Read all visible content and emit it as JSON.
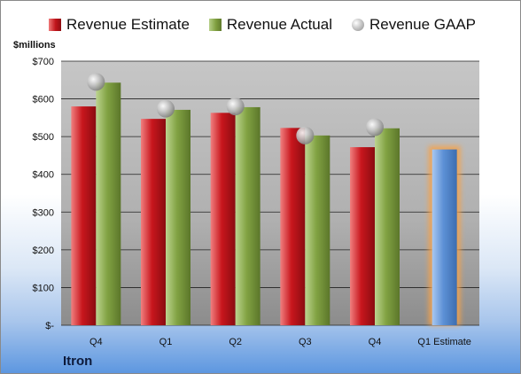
{
  "legend": {
    "estimate_label": "Revenue Estimate",
    "actual_label": "Revenue Actual",
    "gaap_label": "Revenue GAAP"
  },
  "unit_label": "$millions",
  "brand": "Itron",
  "colors": {
    "estimate": "#c0141b",
    "actual": "#7f9f3f",
    "gaap": "#a6a6a6",
    "forecast": "#5b8fd0",
    "forecast_glow": "#f6a24a",
    "plot_top": "#c3c3c3",
    "plot_bottom": "#8a8a8a"
  },
  "chart_data": {
    "type": "bar",
    "categories": [
      "Q4",
      "Q1",
      "Q2",
      "Q3",
      "Q4",
      "Q1 Estimate"
    ],
    "series": [
      {
        "name": "Revenue Estimate",
        "values": [
          580,
          547,
          563,
          523,
          472,
          466
        ]
      },
      {
        "name": "Revenue Actual",
        "values": [
          643,
          571,
          578,
          503,
          522,
          null
        ]
      },
      {
        "name": "Revenue GAAP",
        "values": [
          645,
          574,
          580,
          503,
          525,
          null
        ]
      }
    ],
    "y_ticks": [
      "$-",
      "$100",
      "$200",
      "$300",
      "$400",
      "$500",
      "$600",
      "$700"
    ],
    "ylim": [
      0,
      700
    ],
    "grid": true,
    "legend_position": "top",
    "ylabel": "$millions"
  }
}
